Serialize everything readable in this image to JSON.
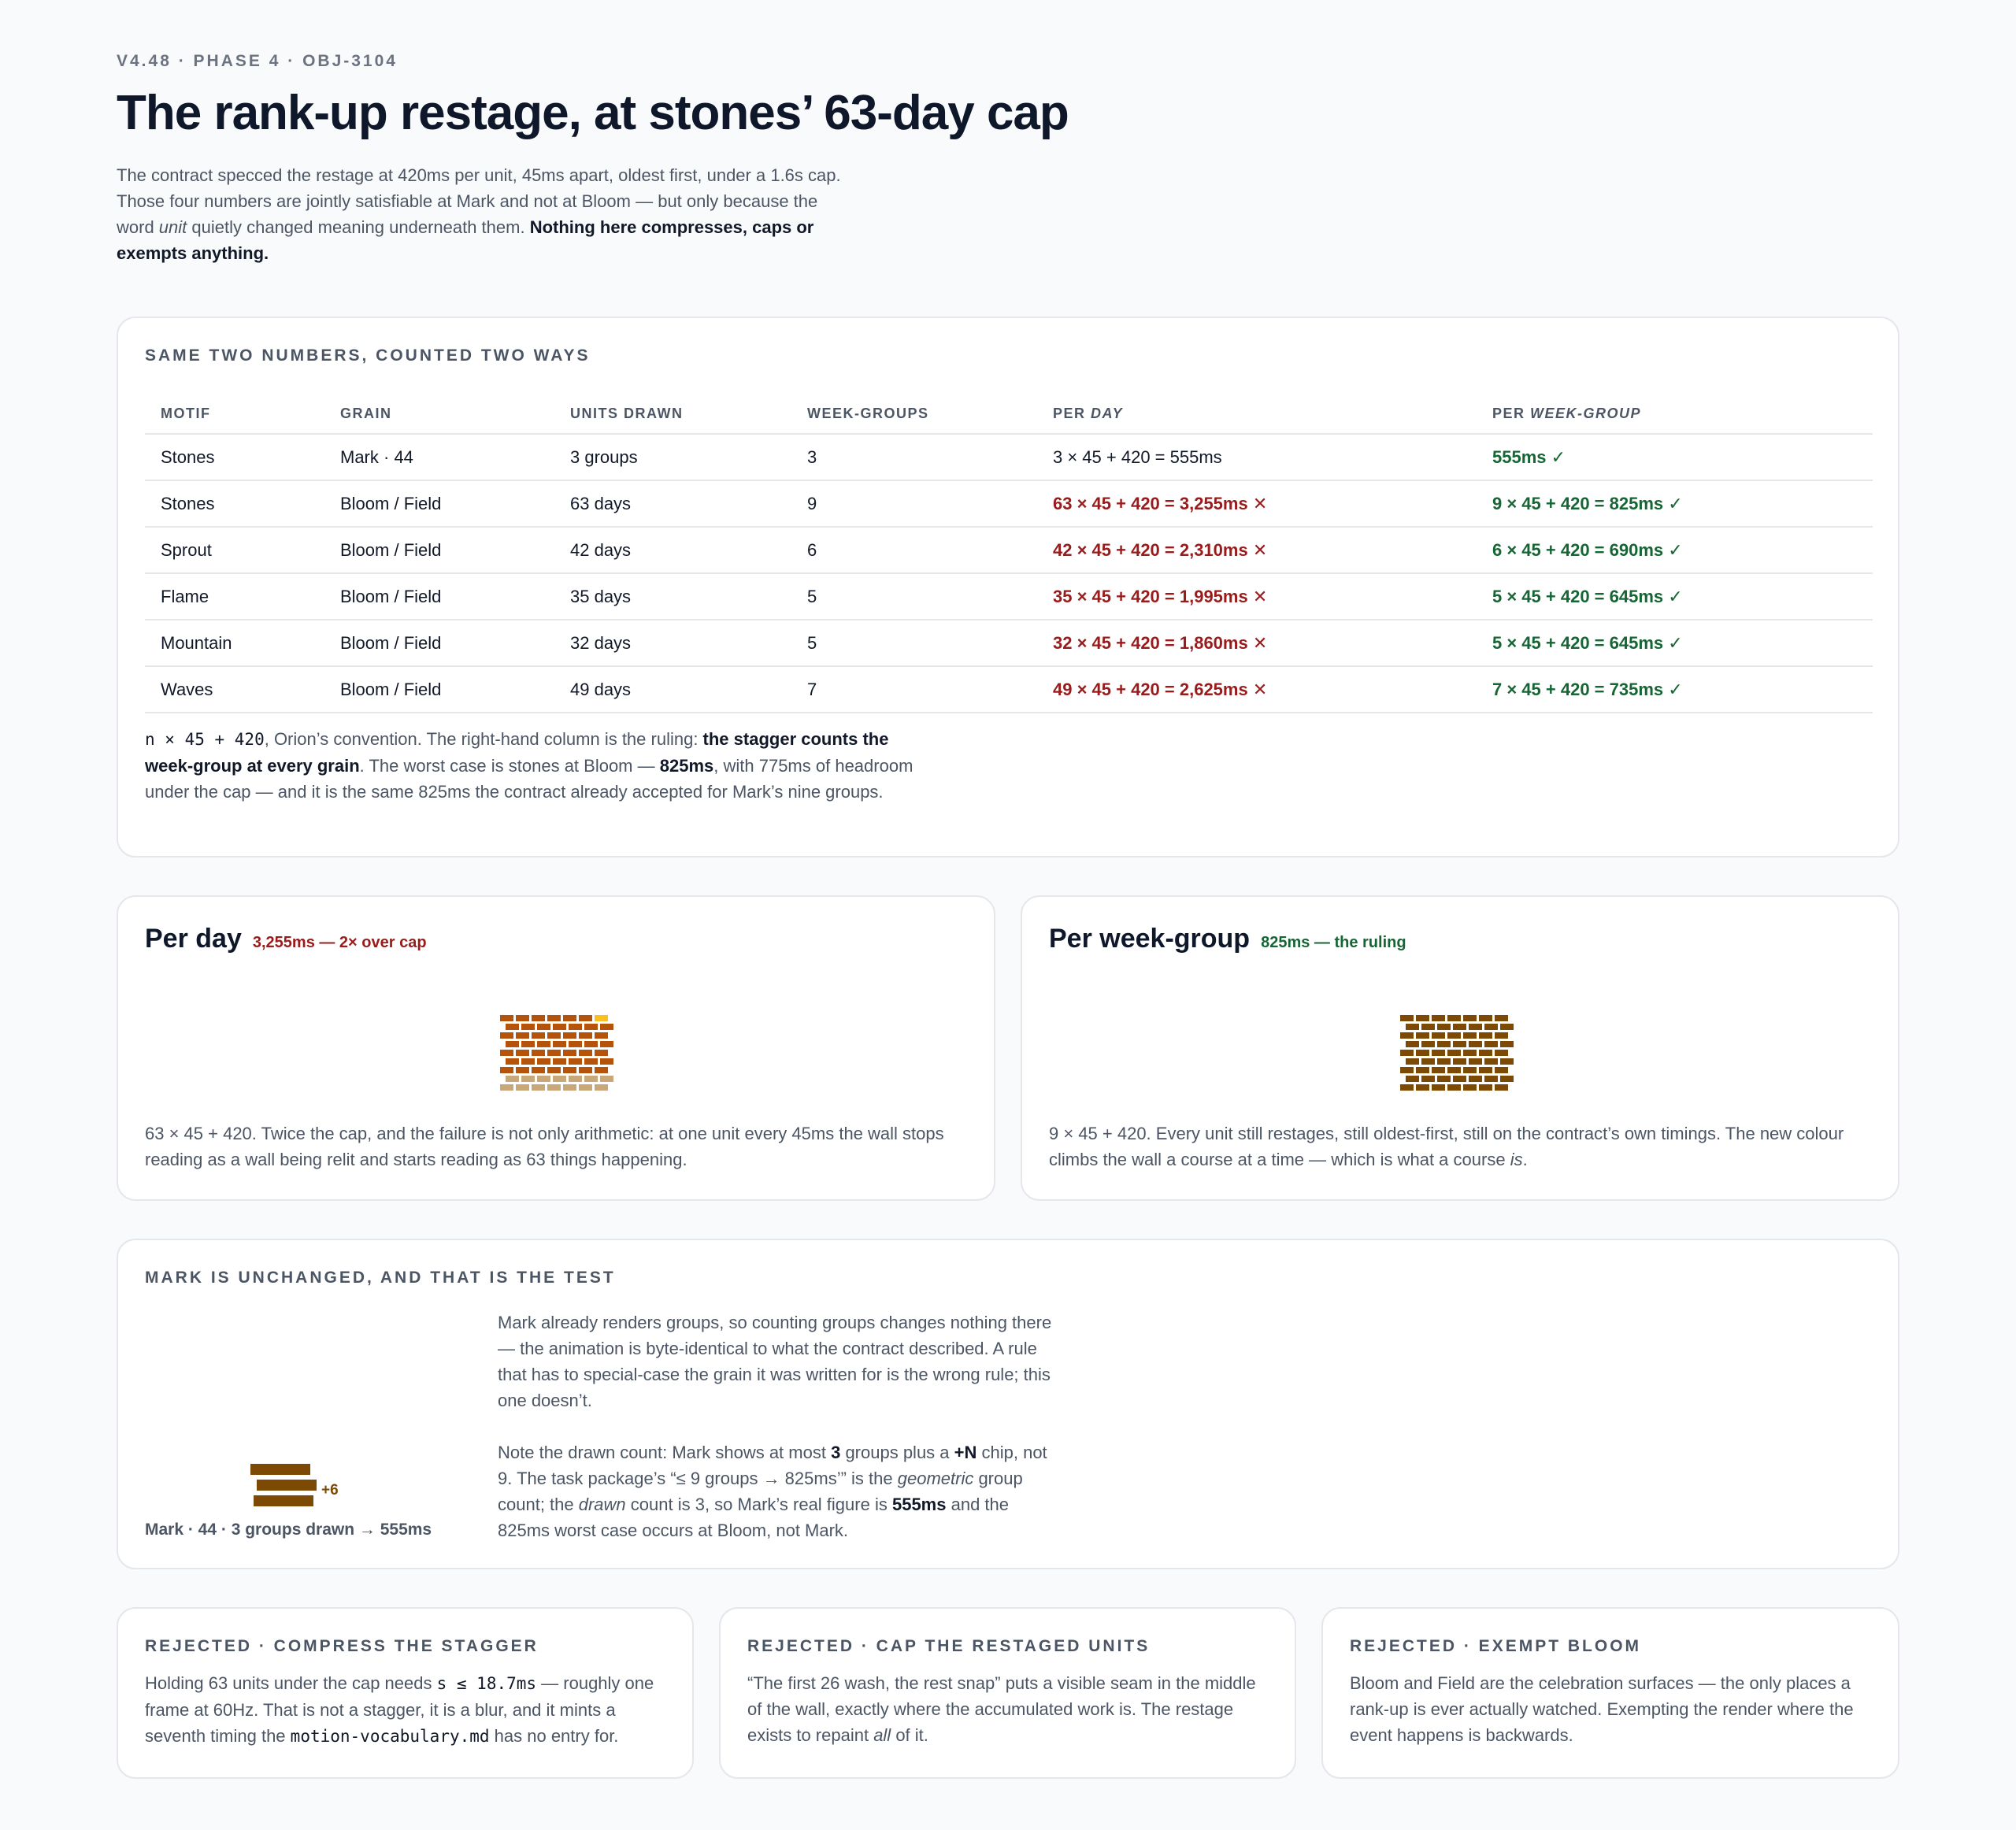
{
  "header": {
    "eyebrow": "V4.48 · PHASE 4 · OBJ-3104",
    "title": "The rank-up restage, at stones’ 63-day cap",
    "intro_1": "The contract specced the restage at 420ms per unit, 45ms apart, oldest first, under a 1.6s cap. Those four numbers are jointly satisfiable at Mark and not at Bloom — but only because the word ",
    "intro_em": "unit",
    "intro_2": " quietly changed meaning underneath them. ",
    "intro_bold": "Nothing here compresses, caps or exempts anything."
  },
  "table_card": {
    "kicker": "SAME TWO NUMBERS, COUNTED TWO WAYS",
    "headers": {
      "motif": "MOTIF",
      "grain": "GRAIN",
      "units": "UNITS DRAWN",
      "groups": "WEEK-GROUPS",
      "per_day_prefix": "PER ",
      "per_day_em": "DAY",
      "per_group_prefix": "PER ",
      "per_group_em": "WEEK-GROUP"
    },
    "rows": [
      {
        "motif": "Stones",
        "grain": "Mark · 44",
        "units": "3 groups",
        "groups": "3",
        "per_day": "3 × 45 + 420 = 555ms",
        "per_group": "555ms ✓"
      },
      {
        "motif": "Stones",
        "grain": "Bloom / Field",
        "units": "63 days",
        "groups": "9",
        "per_day": "63 × 45 + 420 = 3,255ms ✕",
        "per_group": "9 × 45 + 420 = 825ms ✓"
      },
      {
        "motif": "Sprout",
        "grain": "Bloom / Field",
        "units": "42 days",
        "groups": "6",
        "per_day": "42 × 45 + 420 = 2,310ms ✕",
        "per_group": "6 × 45 + 420 = 690ms ✓"
      },
      {
        "motif": "Flame",
        "grain": "Bloom / Field",
        "units": "35 days",
        "groups": "5",
        "per_day": "35 × 45 + 420 = 1,995ms ✕",
        "per_group": "5 × 45 + 420 = 645ms ✓"
      },
      {
        "motif": "Mountain",
        "grain": "Bloom / Field",
        "units": "32 days",
        "groups": "5",
        "per_day": "32 × 45 + 420 = 1,860ms ✕",
        "per_group": "5 × 45 + 420 = 645ms ✓"
      },
      {
        "motif": "Waves",
        "grain": "Bloom / Field",
        "units": "49 days",
        "groups": "7",
        "per_day": "49 × 45 + 420 = 2,625ms ✕",
        "per_group": "7 × 45 + 420 = 735ms ✓"
      }
    ],
    "note_code": "n × 45 + 420",
    "note_1": ", Orion’s convention. The right-hand column is the ruling: ",
    "note_bold": "the stagger counts the week-group at every grain",
    "note_2": ". The worst case is stones at Bloom — ",
    "note_bold2": "825ms",
    "note_3": ", with 775ms of headroom under the cap — and it is the same 825ms the contract already accepted for Mark’s nine groups."
  },
  "panel_day": {
    "title": "Per day",
    "tag": "3,255ms — 2× over cap",
    "text": "63 × 45 + 420. Twice the cap, and the failure is not only arithmetic: at one unit every 45ms the wall stops reading as a wall being relit and starts reading as 63 things happening."
  },
  "panel_week": {
    "title": "Per week-group",
    "tag": "825ms — the ruling",
    "text_1": "9 × 45 + 420. Every unit still restages, still oldest-first, still on the contract’s own timings. The new colour climbs the wall a course at a time — which is what a course ",
    "text_em": "is",
    "text_2": "."
  },
  "mark_card": {
    "kicker": "MARK IS UNCHANGED, AND THAT IS THE TEST",
    "p1": "Mark already renders groups, so counting groups changes nothing there — the animation is byte-identical to what the contract described. A rule that has to special-case the grain it was written for is the wrong rule; this one doesn’t.",
    "p2_a": "Note the drawn count: Mark shows at most ",
    "p2_b1": "3",
    "p2_c": " groups plus a ",
    "p2_b2": "+N",
    "p2_d": " chip, not 9. The task package’s “≤ 9 groups → 825ms’” is the ",
    "p2_em1": "geometric",
    "p2_e": " group count; the ",
    "p2_em2": "drawn",
    "p2_f": " count is 3, so Mark’s real figure is ",
    "p2_b3": "555ms",
    "p2_g": " and the 825ms worst case occurs at Bloom, not Mark.",
    "chip": "+6",
    "caption": "Mark · 44 · 3 groups drawn → 555ms"
  },
  "rejected": [
    {
      "kicker": "REJECTED · COMPRESS THE STAGGER",
      "a": "Holding 63 units under the cap needs ",
      "code1": "s ≤ 18.7ms",
      "b": " — roughly one frame at 60Hz. That is not a stagger, it is a blur, and it mints a seventh timing the ",
      "code2": "motion-vocabulary.md",
      "c": " has no entry for."
    },
    {
      "kicker": "REJECTED · CAP THE RESTAGED UNITS",
      "a": "“The first 26 wash, the rest snap” puts a visible seam in the middle of the wall, exactly where the accumulated work is. The restage exists to repaint ",
      "em": "all",
      "b": " of it."
    },
    {
      "kicker": "REJECTED · EXEMPT BLOOM",
      "a": "Bloom and Field are the celebration surfaces — the only places a rank-up is ever actually watched. Exempting the render where the event happens is backwards."
    }
  ],
  "colors": {
    "bad": "#991b1b",
    "good": "#166534",
    "brick_dark": "#7c4a05",
    "brick_orange": "#b45309",
    "brick_gold": "#fbbf24",
    "brick_faded": "#c8a878"
  }
}
